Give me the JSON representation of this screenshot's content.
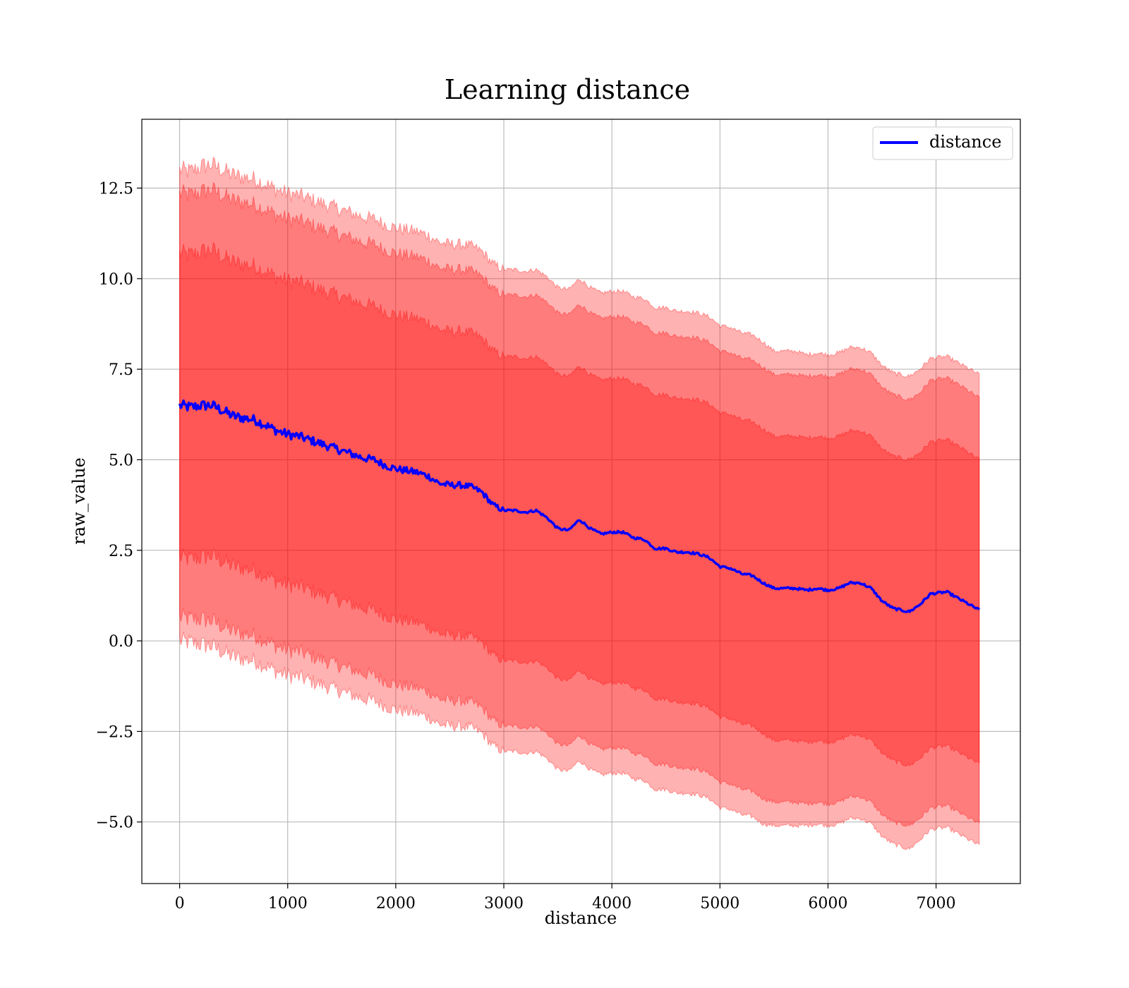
{
  "chart_data": {
    "type": "line",
    "title": "Learning distance",
    "xlabel": "distance",
    "ylabel": "raw_value",
    "xlim": [
      -350,
      7780
    ],
    "ylim": [
      -6.7,
      14.4
    ],
    "xticks": [
      0,
      1000,
      2000,
      3000,
      4000,
      5000,
      6000,
      7000
    ],
    "xtick_labels": [
      "0",
      "1000",
      "2000",
      "3000",
      "4000",
      "5000",
      "6000",
      "7000"
    ],
    "yticks": [
      -5.0,
      -2.5,
      0.0,
      2.5,
      5.0,
      7.5,
      10.0,
      12.5
    ],
    "ytick_labels": [
      "−5.0",
      "−2.5",
      "0.0",
      "2.5",
      "5.0",
      "7.5",
      "10.0",
      "12.5"
    ],
    "grid": true,
    "legend": {
      "position": "upper right",
      "entries": [
        "distance"
      ]
    },
    "colors": {
      "line": "#0000ff",
      "band_fill": "#ff0000",
      "band_alpha": 0.3
    },
    "series": [
      {
        "name": "distance",
        "x": [
          0,
          100,
          200,
          300,
          400,
          500,
          600,
          700,
          800,
          900,
          1000,
          1100,
          1200,
          1300,
          1400,
          1500,
          1600,
          1700,
          1800,
          1900,
          2000,
          2100,
          2200,
          2300,
          2400,
          2500,
          2600,
          2700,
          2800,
          2900,
          3000,
          3100,
          3200,
          3300,
          3400,
          3500,
          3600,
          3700,
          3800,
          3900,
          4000,
          4100,
          4200,
          4300,
          4400,
          4500,
          4600,
          4700,
          4800,
          4900,
          5000,
          5100,
          5200,
          5300,
          5400,
          5500,
          5600,
          5700,
          5800,
          5900,
          6000,
          6100,
          6200,
          6300,
          6400,
          6500,
          6600,
          6750,
          6850,
          6950,
          7100,
          7250,
          7400
        ],
        "y": [
          6.5,
          6.45,
          6.5,
          6.5,
          6.35,
          6.2,
          6.15,
          6.1,
          5.95,
          5.8,
          5.7,
          5.65,
          5.55,
          5.45,
          5.35,
          5.25,
          5.15,
          5.05,
          5.0,
          4.85,
          4.75,
          4.7,
          4.65,
          4.55,
          4.35,
          4.3,
          4.3,
          4.25,
          4.1,
          3.75,
          3.6,
          3.6,
          3.55,
          3.6,
          3.4,
          3.1,
          3.05,
          3.35,
          3.1,
          2.95,
          3.0,
          3.0,
          2.85,
          2.8,
          2.55,
          2.55,
          2.45,
          2.45,
          2.4,
          2.3,
          2.05,
          2.0,
          1.85,
          1.8,
          1.6,
          1.45,
          1.45,
          1.45,
          1.4,
          1.45,
          1.4,
          1.45,
          1.6,
          1.6,
          1.45,
          1.1,
          0.9,
          0.8,
          1.0,
          1.3,
          1.35,
          1.1,
          0.85
        ]
      }
    ],
    "bands": [
      {
        "lower": [
          0.0,
          -0.05,
          -0.1,
          -0.15,
          -0.3,
          -0.45,
          -0.5,
          -0.55,
          -0.7,
          -0.85,
          -0.95,
          -1.0,
          -1.1,
          -1.2,
          -1.3,
          -1.4,
          -1.5,
          -1.6,
          -1.65,
          -1.8,
          -1.9,
          -1.95,
          -2.0,
          -2.1,
          -2.3,
          -2.35,
          -2.35,
          -2.4,
          -2.55,
          -2.9,
          -3.05,
          -3.05,
          -3.1,
          -3.05,
          -3.25,
          -3.55,
          -3.6,
          -3.3,
          -3.55,
          -3.7,
          -3.65,
          -3.65,
          -3.8,
          -3.85,
          -4.1,
          -4.1,
          -4.2,
          -4.2,
          -4.25,
          -4.35,
          -4.6,
          -4.65,
          -4.8,
          -4.85,
          -5.05,
          -5.1,
          -5.1,
          -5.1,
          -5.1,
          -5.05,
          -5.1,
          -5.05,
          -4.9,
          -4.9,
          -5.05,
          -5.4,
          -5.6,
          -5.75,
          -5.5,
          -5.2,
          -5.15,
          -5.4,
          -5.65
        ],
        "upper": [
          13.0,
          12.95,
          13.1,
          13.15,
          13.0,
          12.85,
          12.8,
          12.75,
          12.6,
          12.45,
          12.35,
          12.3,
          12.2,
          12.1,
          12.0,
          11.9,
          11.8,
          11.7,
          11.65,
          11.5,
          11.4,
          11.35,
          11.3,
          11.2,
          11.0,
          10.95,
          10.95,
          10.9,
          10.75,
          10.4,
          10.25,
          10.25,
          10.2,
          10.25,
          10.05,
          9.75,
          9.7,
          10.0,
          9.75,
          9.6,
          9.65,
          9.65,
          9.5,
          9.45,
          9.2,
          9.2,
          9.1,
          9.1,
          9.05,
          8.95,
          8.7,
          8.65,
          8.5,
          8.45,
          8.25,
          8.0,
          8.0,
          8.0,
          7.9,
          7.95,
          7.9,
          7.95,
          8.1,
          8.1,
          7.95,
          7.6,
          7.4,
          7.3,
          7.5,
          7.8,
          7.85,
          7.6,
          7.35
        ]
      },
      {
        "lower": [
          0.65,
          0.6,
          0.6,
          0.55,
          0.4,
          0.25,
          0.2,
          0.15,
          0.0,
          -0.15,
          -0.25,
          -0.3,
          -0.4,
          -0.5,
          -0.6,
          -0.7,
          -0.8,
          -0.9,
          -0.95,
          -1.1,
          -1.2,
          -1.25,
          -1.3,
          -1.4,
          -1.6,
          -1.65,
          -1.65,
          -1.7,
          -1.85,
          -2.2,
          -2.35,
          -2.35,
          -2.4,
          -2.35,
          -2.55,
          -2.85,
          -2.9,
          -2.6,
          -2.85,
          -3.0,
          -2.95,
          -2.95,
          -3.1,
          -3.15,
          -3.4,
          -3.4,
          -3.5,
          -3.5,
          -3.55,
          -3.65,
          -3.9,
          -3.95,
          -4.1,
          -4.15,
          -4.35,
          -4.45,
          -4.45,
          -4.45,
          -4.5,
          -4.45,
          -4.5,
          -4.45,
          -4.3,
          -4.3,
          -4.45,
          -4.8,
          -5.0,
          -5.1,
          -4.9,
          -4.6,
          -4.55,
          -4.8,
          -5.05
        ],
        "upper": [
          12.35,
          12.3,
          12.4,
          12.45,
          12.3,
          12.15,
          12.1,
          12.05,
          11.9,
          11.75,
          11.65,
          11.6,
          11.5,
          11.4,
          11.3,
          11.2,
          11.1,
          11.0,
          10.95,
          10.8,
          10.7,
          10.65,
          10.6,
          10.5,
          10.3,
          10.25,
          10.25,
          10.2,
          10.05,
          9.7,
          9.55,
          9.55,
          9.5,
          9.55,
          9.35,
          9.05,
          9.0,
          9.3,
          9.05,
          8.9,
          8.95,
          8.95,
          8.8,
          8.75,
          8.5,
          8.5,
          8.4,
          8.4,
          8.35,
          8.25,
          8.0,
          7.95,
          7.8,
          7.75,
          7.55,
          7.35,
          7.35,
          7.35,
          7.3,
          7.35,
          7.3,
          7.35,
          7.5,
          7.5,
          7.35,
          7.0,
          6.8,
          6.65,
          6.85,
          7.2,
          7.25,
          7.0,
          6.7
        ]
      },
      {
        "lower": [
          2.3,
          2.25,
          2.3,
          2.35,
          2.2,
          2.05,
          2.0,
          1.95,
          1.8,
          1.65,
          1.55,
          1.5,
          1.4,
          1.3,
          1.2,
          1.1,
          1.0,
          0.9,
          0.85,
          0.7,
          0.6,
          0.55,
          0.5,
          0.4,
          0.2,
          0.15,
          0.15,
          0.1,
          -0.05,
          -0.4,
          -0.55,
          -0.55,
          -0.6,
          -0.55,
          -0.75,
          -1.05,
          -1.1,
          -0.8,
          -1.05,
          -1.2,
          -1.15,
          -1.15,
          -1.3,
          -1.35,
          -1.6,
          -1.6,
          -1.7,
          -1.7,
          -1.75,
          -1.85,
          -2.1,
          -2.15,
          -2.3,
          -2.35,
          -2.55,
          -2.75,
          -2.75,
          -2.75,
          -2.8,
          -2.75,
          -2.8,
          -2.75,
          -2.6,
          -2.6,
          -2.75,
          -3.1,
          -3.3,
          -3.45,
          -3.25,
          -2.95,
          -2.9,
          -3.15,
          -3.4
        ],
        "upper": [
          10.7,
          10.65,
          10.75,
          10.8,
          10.6,
          10.45,
          10.4,
          10.35,
          10.2,
          10.05,
          9.95,
          9.9,
          9.8,
          9.7,
          9.6,
          9.5,
          9.4,
          9.3,
          9.25,
          9.1,
          9.0,
          8.95,
          8.9,
          8.8,
          8.6,
          8.55,
          8.55,
          8.5,
          8.35,
          8.0,
          7.85,
          7.85,
          7.8,
          7.85,
          7.65,
          7.35,
          7.3,
          7.6,
          7.35,
          7.2,
          7.25,
          7.25,
          7.1,
          7.05,
          6.8,
          6.8,
          6.7,
          6.7,
          6.65,
          6.55,
          6.3,
          6.25,
          6.1,
          6.05,
          5.85,
          5.65,
          5.65,
          5.65,
          5.6,
          5.65,
          5.6,
          5.65,
          5.8,
          5.8,
          5.65,
          5.3,
          5.1,
          5.0,
          5.2,
          5.5,
          5.55,
          5.3,
          5.0
        ]
      }
    ]
  }
}
